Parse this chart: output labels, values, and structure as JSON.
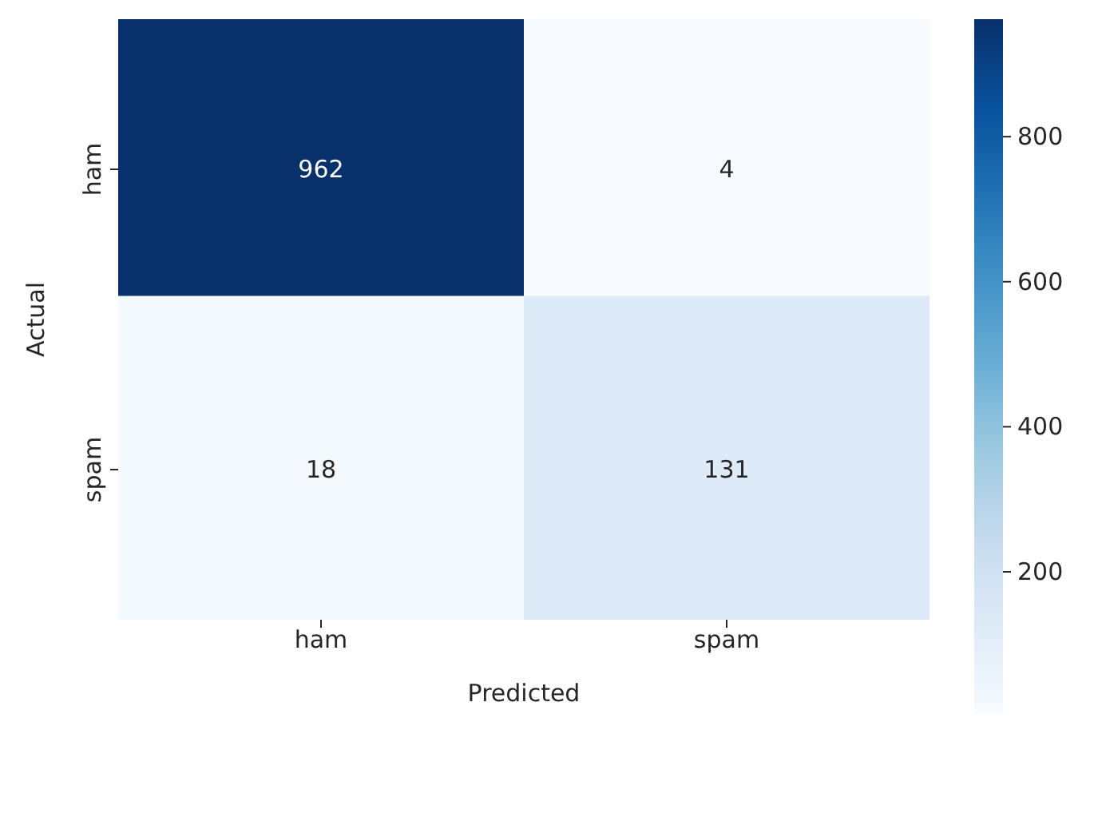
{
  "chart_data": {
    "type": "heatmap",
    "xlabel": "Predicted",
    "ylabel": "Actual",
    "categories": [
      "ham",
      "spam"
    ],
    "y_categories": [
      "ham",
      "spam"
    ],
    "cells": [
      [
        962,
        4
      ],
      [
        18,
        131
      ]
    ],
    "clim": [
      4,
      962
    ],
    "cticks": [
      200,
      400,
      600,
      800
    ],
    "data_labels": true
  }
}
